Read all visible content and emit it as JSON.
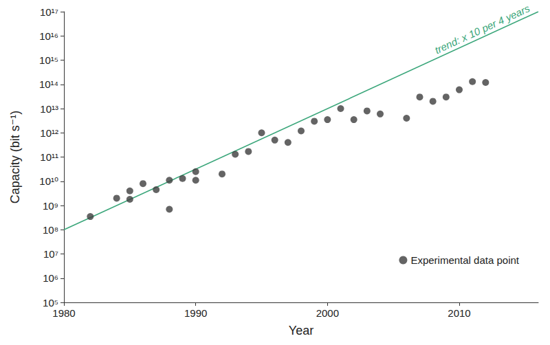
{
  "chart_data": {
    "type": "scatter",
    "x_label": "Year",
    "y_label": "Capacity (bit s⁻¹)",
    "log": "y",
    "grid": false,
    "legend": "lower right",
    "xlim": [
      1980,
      2016
    ],
    "xticks": [
      1980,
      1990,
      2000,
      2010
    ],
    "ylim": [
      100000,
      100000000000000000
    ],
    "yticks": [
      {
        "value": 100000,
        "label": "10⁵"
      },
      {
        "value": 1000000,
        "label": "10⁶"
      },
      {
        "value": 10000000,
        "label": "10⁷"
      },
      {
        "value": 100000000,
        "label": "10⁸"
      },
      {
        "value": 1000000000,
        "label": "10⁹"
      },
      {
        "value": 10000000000,
        "label": "10¹⁰"
      },
      {
        "value": 100000000000,
        "label": "10¹¹"
      },
      {
        "value": 1000000000000,
        "label": "10¹²"
      },
      {
        "value": 10000000000000,
        "label": "10¹³"
      },
      {
        "value": 100000000000000,
        "label": "10¹⁴"
      },
      {
        "value": 1000000000000000,
        "label": "10¹⁵"
      },
      {
        "value": 10000000000000000,
        "label": "10¹⁶"
      },
      {
        "value": 100000000000000000,
        "label": "10¹⁷"
      }
    ],
    "series": [
      {
        "name": "Experimental data point",
        "type": "scatter",
        "marker": "circle",
        "color": "#3d3d3d",
        "x": [
          1982,
          1984,
          1985,
          1985,
          1986,
          1987,
          1988,
          1988,
          1989,
          1990,
          1990,
          1992,
          1993,
          1994,
          1995,
          1996,
          1997,
          1998,
          1999,
          2000,
          2001,
          2002,
          2003,
          2004,
          2006,
          2007,
          2008,
          2009,
          2010,
          2011,
          2012
        ],
        "values": [
          350000000,
          2000000000,
          4000000000,
          1800000000,
          8000000000,
          4500000000,
          11000000000,
          700000000,
          13000000000,
          25000000000,
          11000000000,
          20000000000,
          130000000000,
          170000000000,
          1000000000000,
          500000000000,
          400000000000,
          1200000000000,
          3000000000000,
          3500000000000,
          10000000000000,
          3500000000000,
          8000000000000,
          6000000000000,
          4000000000000,
          30000000000000,
          20000000000000,
          30000000000000,
          60000000000000,
          130000000000000,
          120000000000000
        ]
      },
      {
        "type": "line",
        "line_style": "solid",
        "color": "#3aa67a",
        "annotation": "trend: x 10 per 4 years",
        "x": [
          1980,
          2016
        ],
        "values": [
          100000000,
          100000000000000000
        ]
      }
    ]
  }
}
